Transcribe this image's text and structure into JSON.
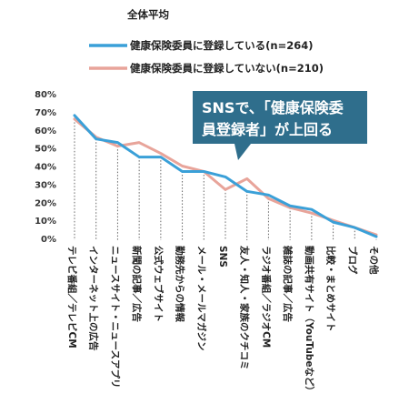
{
  "chart_data": {
    "type": "line",
    "legend_title": "全体平均",
    "legend_placement": "top",
    "ylim": [
      0,
      80
    ],
    "y_ticks": [
      "0%",
      "10%",
      "20%",
      "30%",
      "40%",
      "50%",
      "60%",
      "70%",
      "80%"
    ],
    "categories": [
      "テレビ番組／テレビCM",
      "インターネット上の広告",
      "ニュースサイト・ニュースアプリ",
      "新聞の記事／広告",
      "公式ウェブサイト",
      "勤務先からの情報",
      "メール・メールマガジン",
      "SNS",
      "友人・知人・家族のクチコミ",
      "ラジオ番組／ラジオCM",
      "雑誌の記事／広告",
      "動画共有サイト（YouTubeなど）",
      "比較・まとめサイト",
      "ブログ",
      "その他"
    ],
    "series": [
      {
        "name": "健康保険委員に登録している(n=264)",
        "color": "#3aa0d8",
        "values": [
          68,
          55,
          53,
          45,
          45,
          37,
          37,
          34,
          26,
          24,
          18,
          16,
          9,
          6,
          1
        ]
      },
      {
        "name": "健康保険委員に登録していない(n=210)",
        "color": "#e8a49a",
        "values": [
          66,
          56,
          51,
          53,
          47,
          40,
          37,
          27,
          33,
          22,
          17,
          14,
          10,
          6,
          2
        ]
      }
    ],
    "annotation": {
      "lines": [
        "SNSで、「健康保険委",
        "員登録者」が上回る"
      ],
      "color": "#2f6e8c"
    }
  }
}
